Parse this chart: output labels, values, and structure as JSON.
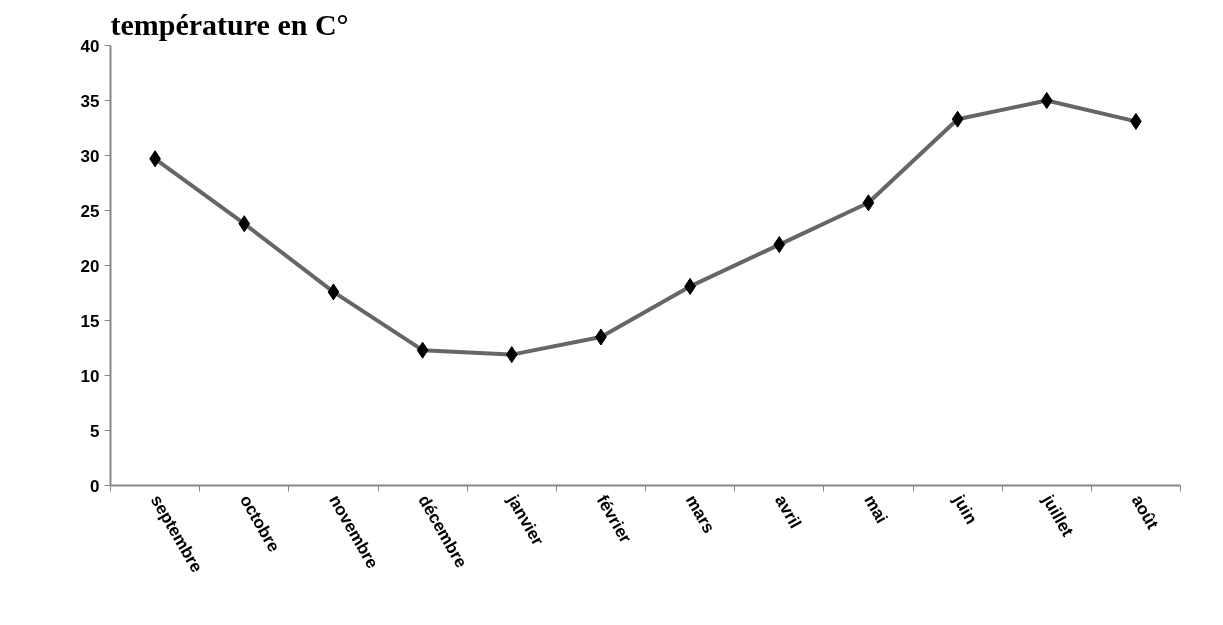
{
  "chart_data": {
    "type": "line",
    "title": "température en C°",
    "categories": [
      "septembre",
      "octobre",
      "novembre",
      "décembre",
      "janvier",
      "février",
      "mars",
      "avril",
      "mai",
      "juin",
      "juillet",
      "août"
    ],
    "series": [
      {
        "color": "#666666",
        "values": [
          29.7,
          23.8,
          17.6,
          12.3,
          11.9,
          13.5,
          18.1,
          21.9,
          25.7,
          33.3,
          35.0,
          33.1
        ]
      }
    ],
    "ylim": [
      0,
      40
    ],
    "yticks": [
      0,
      5,
      10,
      15,
      20,
      25,
      30,
      35,
      40
    ],
    "grid": false,
    "marker": "diamond",
    "line_style": "solid"
  }
}
